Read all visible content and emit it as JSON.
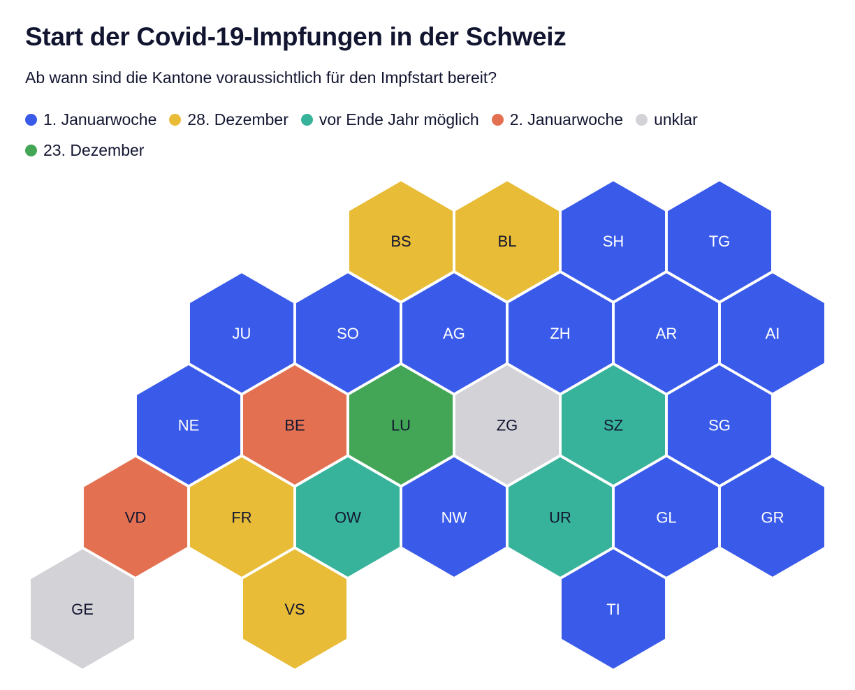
{
  "title": "Start der Covid-19-Impfungen in der Schweiz",
  "subtitle": "Ab wann sind die Kantone voraussichtlich für den Impfstart bereit?",
  "legend": [
    {
      "key": "jan1",
      "label": "1. Januarwoche",
      "color": "#3a5bea"
    },
    {
      "key": "dec28",
      "label": "28. Dezember",
      "color": "#e8bc37"
    },
    {
      "key": "beforeEnd",
      "label": "vor Ende Jahr möglich",
      "color": "#38b39b"
    },
    {
      "key": "jan2",
      "label": "2. Januarwoche",
      "color": "#e37151"
    },
    {
      "key": "unclear",
      "label": "unklar",
      "color": "#d2d2d7"
    },
    {
      "key": "dec23",
      "label": "23. Dezember",
      "color": "#43a656"
    }
  ],
  "chart_data": {
    "type": "hex tile map",
    "title": "Start der Covid-19-Impfungen in der Schweiz",
    "subtitle": "Ab wann sind die Kantone voraussichtlich für den Impfstart bereit?",
    "cantons": [
      {
        "code": "BS",
        "category": "dec28",
        "row": 0,
        "col": 1
      },
      {
        "code": "BL",
        "category": "dec28",
        "row": 0,
        "col": 2
      },
      {
        "code": "SH",
        "category": "jan1",
        "row": 0,
        "col": 3
      },
      {
        "code": "TG",
        "category": "jan1",
        "row": 0,
        "col": 4
      },
      {
        "code": "JU",
        "category": "jan1",
        "row": 1,
        "col": 0
      },
      {
        "code": "SO",
        "category": "jan1",
        "row": 1,
        "col": 1
      },
      {
        "code": "AG",
        "category": "jan1",
        "row": 1,
        "col": 2
      },
      {
        "code": "ZH",
        "category": "jan1",
        "row": 1,
        "col": 3
      },
      {
        "code": "AR",
        "category": "jan1",
        "row": 1,
        "col": 4
      },
      {
        "code": "AI",
        "category": "jan1",
        "row": 1,
        "col": 5
      },
      {
        "code": "NE",
        "category": "jan1",
        "row": 2,
        "col": 0
      },
      {
        "code": "BE",
        "category": "jan2",
        "row": 2,
        "col": 1
      },
      {
        "code": "LU",
        "category": "dec23",
        "row": 2,
        "col": 2
      },
      {
        "code": "ZG",
        "category": "unclear",
        "row": 2,
        "col": 3
      },
      {
        "code": "SZ",
        "category": "beforeEnd",
        "row": 2,
        "col": 4
      },
      {
        "code": "SG",
        "category": "jan1",
        "row": 2,
        "col": 5
      },
      {
        "code": "VD",
        "category": "jan2",
        "row": 3,
        "col": 0
      },
      {
        "code": "FR",
        "category": "dec28",
        "row": 3,
        "col": 1
      },
      {
        "code": "OW",
        "category": "beforeEnd",
        "row": 3,
        "col": 2
      },
      {
        "code": "NW",
        "category": "jan1",
        "row": 3,
        "col": 3
      },
      {
        "code": "UR",
        "category": "beforeEnd",
        "row": 3,
        "col": 4
      },
      {
        "code": "GL",
        "category": "jan1",
        "row": 3,
        "col": 5
      },
      {
        "code": "GR",
        "category": "jan1",
        "row": 3,
        "col": 6
      },
      {
        "code": "GE",
        "category": "unclear",
        "row": 4,
        "col": 0
      },
      {
        "code": "VS",
        "category": "dec28",
        "row": 4,
        "col": 2
      },
      {
        "code": "TI",
        "category": "jan1",
        "row": 4,
        "col": 5
      }
    ]
  }
}
